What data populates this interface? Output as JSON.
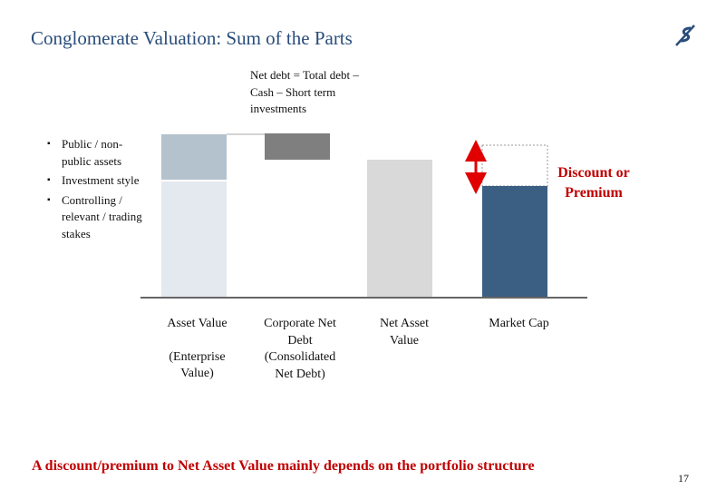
{
  "header": {
    "title": "Conglomerate Valuation: Sum of the Parts",
    "logo_icon": "company-logo-icon"
  },
  "top_note": "Net debt = Total debt – Cash – Short term investments",
  "bullets": [
    "Public / non-public assets",
    "Investment style",
    "Controlling / relevant / trading stakes"
  ],
  "discount_label": "Discount or Premium",
  "columns": {
    "asset_value": [
      "Asset Value",
      "",
      "(Enterprise Value)"
    ],
    "net_debt": [
      "Corporate Net Debt (Consolidated Net Debt)"
    ],
    "nav": [
      "Net Asset Value"
    ],
    "market_cap": [
      "Market Cap"
    ]
  },
  "footer": "A discount/premium to Net Asset Value mainly depends on the portfolio structure",
  "page_number": "17",
  "colors": {
    "title": "#2a4d7a",
    "accent_red": "#c00000",
    "asset_light": "#e4e9ef",
    "asset_top": "#b4c2cd",
    "net_debt_bar": "#7f7f7f",
    "nav_bar": "#d9d9d9",
    "market_cap_bar": "#3b5f82"
  }
}
